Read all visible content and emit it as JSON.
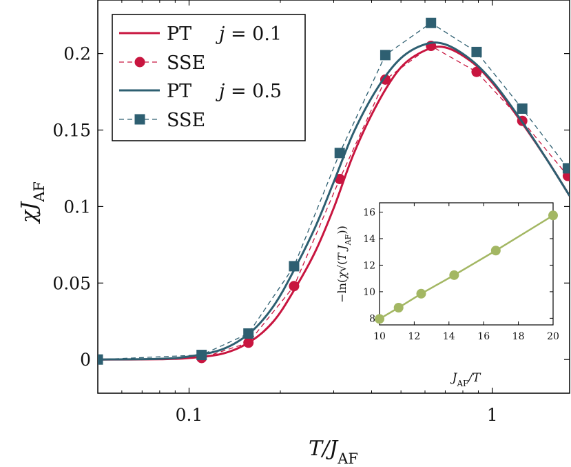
{
  "chart_data": [
    {
      "type": "line",
      "xscale": "log",
      "xlabel": "T/J_AF",
      "ylabel": "χJ_AF",
      "xlim": [
        0.05,
        1.8
      ],
      "ylim": [
        -0.022,
        0.235
      ],
      "xticks": [
        0.1,
        1
      ],
      "xtick_labels": [
        "0.1",
        "1"
      ],
      "yticks": [
        0,
        0.05,
        0.1,
        0.15,
        0.2
      ],
      "ytick_labels": [
        "0",
        "0.05",
        "0.1",
        "0.15",
        "0.2"
      ],
      "grid": false,
      "legend_position": "top-left",
      "series": [
        {
          "name": "PT",
          "annotation": "j = 0.1",
          "style": "solid",
          "color": "#c8153f",
          "x": [
            0.05,
            0.08,
            0.1,
            0.13,
            0.16,
            0.19,
            0.22,
            0.26,
            0.3,
            0.35,
            0.42,
            0.5,
            0.6,
            0.7,
            0.85,
            1.0,
            1.2,
            1.5,
            1.8
          ],
          "y": [
            0.0,
            0.0002,
            0.001,
            0.004,
            0.012,
            0.025,
            0.044,
            0.07,
            0.099,
            0.135,
            0.168,
            0.191,
            0.202,
            0.204,
            0.195,
            0.181,
            0.16,
            0.132,
            0.107
          ]
        },
        {
          "name": "SSE",
          "style": "dashed-markers",
          "marker": "circle",
          "color": "#c8153f",
          "x": [
            0.05,
            0.11,
            0.157,
            0.222,
            0.314,
            0.444,
            0.628,
            0.888,
            1.256,
            1.776
          ],
          "y": [
            0.0,
            0.001,
            0.011,
            0.048,
            0.118,
            0.183,
            0.205,
            0.188,
            0.156,
            0.12
          ]
        },
        {
          "name": "PT",
          "annotation": "j = 0.5",
          "style": "solid",
          "color": "#2e5f71",
          "x": [
            0.05,
            0.08,
            0.1,
            0.13,
            0.16,
            0.19,
            0.22,
            0.26,
            0.3,
            0.35,
            0.42,
            0.5,
            0.6,
            0.7,
            0.85,
            1.0,
            1.2,
            1.5,
            1.8
          ],
          "y": [
            0.0,
            0.0005,
            0.002,
            0.007,
            0.018,
            0.035,
            0.057,
            0.086,
            0.116,
            0.149,
            0.178,
            0.197,
            0.206,
            0.206,
            0.196,
            0.182,
            0.161,
            0.132,
            0.107
          ]
        },
        {
          "name": "SSE",
          "style": "dashed-markers",
          "marker": "square",
          "color": "#2e5f71",
          "x": [
            0.05,
            0.11,
            0.157,
            0.222,
            0.314,
            0.444,
            0.628,
            0.888,
            1.256,
            1.776
          ],
          "y": [
            0.0,
            0.003,
            0.017,
            0.061,
            0.135,
            0.199,
            0.22,
            0.201,
            0.164,
            0.125
          ]
        }
      ]
    },
    {
      "type": "line",
      "placement": "inset",
      "xlabel": "J_AF/T",
      "ylabel": "−ln(χ√(T J_AF))",
      "xlim": [
        10,
        20
      ],
      "ylim": [
        7.5,
        16.7
      ],
      "xticks": [
        10,
        12,
        14,
        16,
        18,
        20
      ],
      "xtick_labels": [
        "10",
        "12",
        "14",
        "16",
        "18",
        "20"
      ],
      "yticks": [
        8,
        10,
        12,
        14,
        16
      ],
      "ytick_labels": [
        "8",
        "10",
        "12",
        "14",
        "16"
      ],
      "series": [
        {
          "style": "solid-markers",
          "marker": "circle",
          "color": "#a3b763",
          "x": [
            10.0,
            11.1,
            12.4,
            14.3,
            16.7,
            20.0
          ],
          "y": [
            7.95,
            8.8,
            9.85,
            11.25,
            13.1,
            15.75
          ]
        }
      ]
    }
  ],
  "legend": {
    "entries": [
      {
        "label": "PT",
        "note": "j = 0.1"
      },
      {
        "label": "SSE",
        "note": ""
      },
      {
        "label": "PT",
        "note": "j = 0.5"
      },
      {
        "label": "SSE",
        "note": ""
      }
    ]
  },
  "colors": {
    "red": "#c8153f",
    "teal": "#2e5f71",
    "olive": "#a3b763"
  }
}
